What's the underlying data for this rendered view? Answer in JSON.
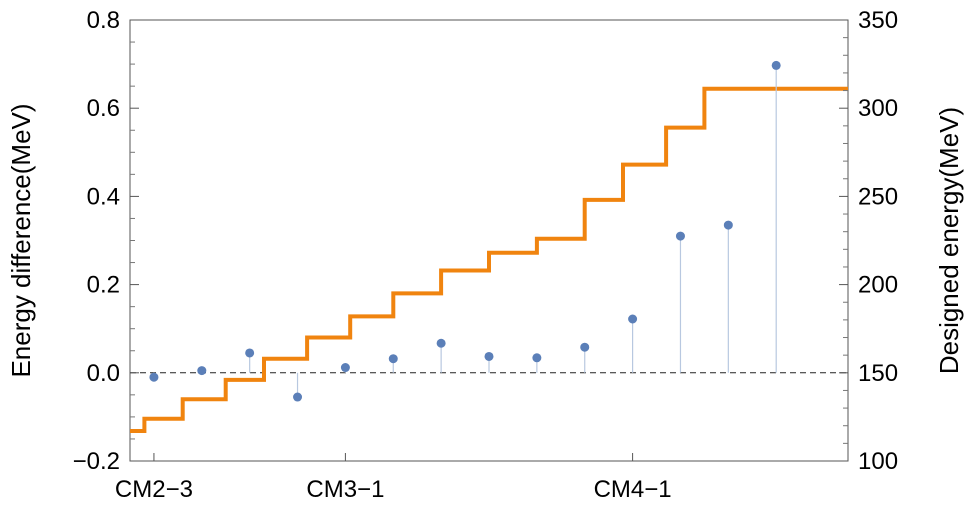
{
  "chart_data": {
    "type": "line",
    "title": "",
    "ylabel_left": "Energy difference(MeV)",
    "ylabel_right": "Designed energy(MeV)",
    "xlabels": [
      "CM2−3",
      "CM3−1",
      "CM4−1"
    ],
    "ylim_left": [
      -0.2,
      0.8
    ],
    "ylim_right": [
      100,
      350
    ],
    "left_ticks": [
      "−0.2",
      "0.0",
      "0.2",
      "0.4",
      "0.6",
      "0.8"
    ],
    "left_tick_values": [
      -0.2,
      0.0,
      0.2,
      0.4,
      0.6,
      0.8
    ],
    "right_ticks": [
      "100",
      "150",
      "200",
      "250",
      "300",
      "350"
    ],
    "right_tick_values": [
      100,
      150,
      200,
      250,
      300,
      350
    ],
    "x_range": [
      0.5,
      15.5
    ],
    "xlabel_positions": [
      1,
      5,
      11
    ],
    "reference_line": 0.0,
    "grid": false,
    "series": [
      {
        "kind": "points",
        "color": "#5b7fb8",
        "x": [
          1,
          2,
          3,
          4,
          5,
          6,
          7,
          8,
          9,
          10,
          11,
          12,
          13,
          14,
          15
        ],
        "y": [
          -0.01,
          0.005,
          0.045,
          -0.055,
          0.012,
          0.032,
          0.067,
          0.037,
          0.034,
          0.058,
          0.122,
          0.31,
          0.335,
          0.697,
          null
        ]
      },
      {
        "kind": "step",
        "axis": "right",
        "color": "#f0840f",
        "x_edges": [
          0.5,
          0.8,
          1.6,
          2.5,
          3.3,
          4.2,
          5.1,
          6.0,
          7.0,
          8.0,
          9.0,
          10.0,
          10.8,
          11.7,
          12.5,
          14.0,
          15.5
        ],
        "y": [
          117,
          124,
          135,
          146,
          158,
          170,
          182,
          195,
          208,
          218,
          226,
          248,
          268,
          289,
          311,
          311
        ]
      }
    ]
  }
}
